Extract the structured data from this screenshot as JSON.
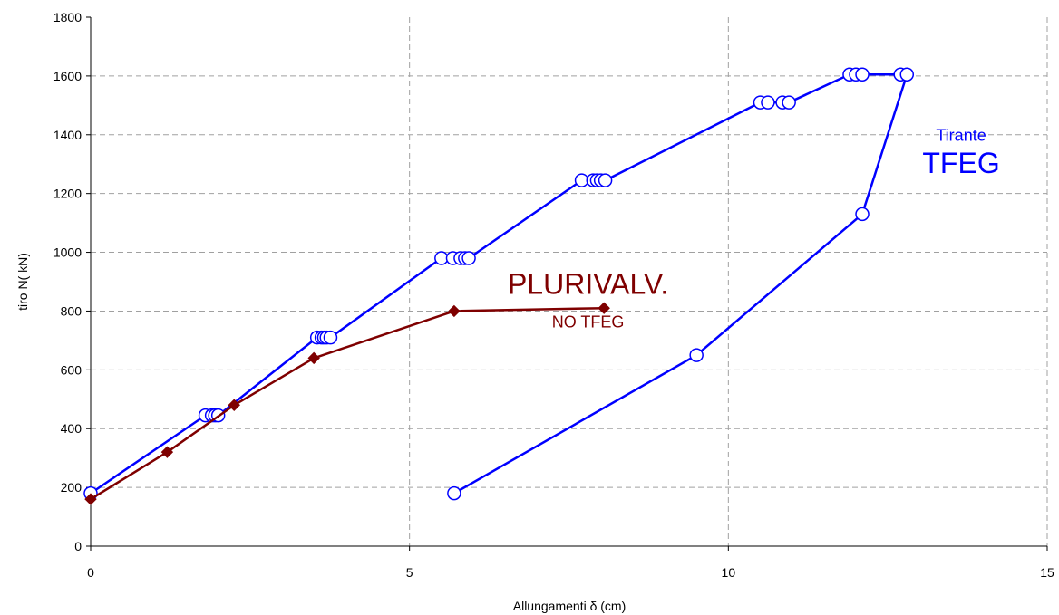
{
  "chart_data": {
    "type": "scatter",
    "xlabel": "Allungamenti δ (cm)",
    "ylabel": "tiro N( kN)",
    "xlim": [
      0,
      15
    ],
    "ylim": [
      0,
      1800
    ],
    "xticks": [
      "0",
      "5",
      "10",
      "15"
    ],
    "yticks": [
      "0",
      "200",
      "400",
      "600",
      "800",
      "1000",
      "1200",
      "1400",
      "1600",
      "1800"
    ],
    "grid": true,
    "legend": "none",
    "series": [
      {
        "color": "#0000ff",
        "marker": "circle",
        "x": [
          0,
          1.8,
          1.9,
          1.95,
          2.0,
          3.55,
          3.62,
          3.66,
          3.7,
          3.76,
          5.5,
          5.68,
          5.8,
          5.87,
          5.93,
          7.7,
          7.88,
          7.94,
          8.0,
          8.07,
          10.5,
          10.62,
          10.85,
          10.95,
          11.9,
          12.0,
          12.1,
          12.7,
          12.8,
          12.1,
          9.5,
          5.7
        ],
        "y": [
          180,
          445,
          445,
          445,
          445,
          710,
          710,
          710,
          710,
          710,
          980,
          980,
          980,
          980,
          980,
          1245,
          1245,
          1245,
          1245,
          1245,
          1510,
          1510,
          1510,
          1510,
          1605,
          1605,
          1605,
          1605,
          1605,
          1130,
          650,
          180
        ]
      },
      {
        "color": "#7f0000",
        "marker": "diamond",
        "x": [
          0,
          1.2,
          2.25,
          3.5,
          5.7,
          8.05
        ],
        "y": [
          160,
          320,
          480,
          640,
          800,
          810
        ]
      }
    ],
    "annotations": [
      {
        "text": "Tirante",
        "x": 13.65,
        "y": 1380,
        "color": "#0000ff",
        "size": 18
      },
      {
        "text": "TFEG",
        "x": 13.65,
        "y": 1270,
        "color": "#0000ff",
        "size": 32
      },
      {
        "text": "PLURIVALV.",
        "x": 7.8,
        "y": 858,
        "color": "#7f0000",
        "size": 32
      },
      {
        "text": "NO TFEG",
        "x": 7.8,
        "y": 745,
        "color": "#7f0000",
        "size": 18
      }
    ]
  }
}
